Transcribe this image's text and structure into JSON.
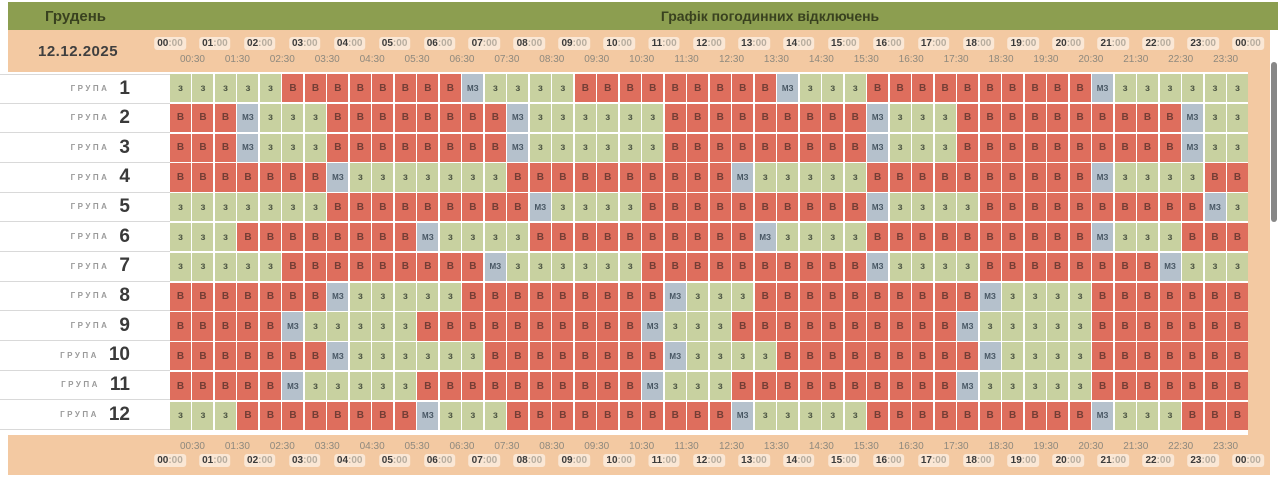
{
  "title_bar": {
    "month": "Грудень",
    "title": "Графік погодинних відключень"
  },
  "date": "12.12.2025",
  "time_axis": {
    "hours": [
      "00:00",
      "01:00",
      "02:00",
      "03:00",
      "04:00",
      "05:00",
      "06:00",
      "07:00",
      "08:00",
      "09:00",
      "10:00",
      "11:00",
      "12:00",
      "13:00",
      "14:00",
      "15:00",
      "16:00",
      "17:00",
      "18:00",
      "19:00",
      "20:00",
      "21:00",
      "22:00",
      "23:00",
      "00:00"
    ],
    "half_hours": [
      "00:30",
      "01:30",
      "02:30",
      "03:30",
      "04:30",
      "05:30",
      "06:30",
      "07:30",
      "08:30",
      "09:30",
      "10:30",
      "11:30",
      "12:30",
      "13:30",
      "14:30",
      "15:30",
      "16:30",
      "17:30",
      "18:30",
      "19:30",
      "20:30",
      "21:30",
      "22:30",
      "23:30"
    ]
  },
  "groups": [
    {
      "label": "ГРУПА",
      "number": "1"
    },
    {
      "label": "ГРУПА",
      "number": "2"
    },
    {
      "label": "ГРУПА",
      "number": "3"
    },
    {
      "label": "ГРУПА",
      "number": "4"
    },
    {
      "label": "ГРУПА",
      "number": "5"
    },
    {
      "label": "ГРУПА",
      "number": "6"
    },
    {
      "label": "ГРУПА",
      "number": "7"
    },
    {
      "label": "ГРУПА",
      "number": "8"
    },
    {
      "label": "ГРУПА",
      "number": "9"
    },
    {
      "label": "ГРУПА",
      "number": "10"
    },
    {
      "label": "ГРУПА",
      "number": "11"
    },
    {
      "label": "ГРУПА",
      "number": "12"
    }
  ],
  "schedule": {
    "cell_types": {
      "z": {
        "label": "з",
        "color": "#c8d1a0",
        "text_color": "#4f5845"
      },
      "v": {
        "label": "В",
        "color": "#de6e5d",
        "text_color": "#733d35"
      },
      "m": {
        "label": "МЗ",
        "color": "#b5c1cc",
        "text_color": "#475663"
      }
    },
    "rows": [
      "zzzzzvvvvvvvvmzzzzvvvvvvvvvmzzzvvvvvvvvvvmzzzzzz",
      "vvvmzzzvvvvvvvvmzzzzzzvvvvvvvvvmzzzvvvvvvvvvvmzz",
      "vvvmzzzvvvvvvvvmzzzzzzvvvvvvvvvmzzzvvvvvvvvvvmzz",
      "vvvvvvvmzzzzzzzvvvvvvvvvvmzzzzzvvvvvvvvvvmzzzzvv",
      "zzzzzzzvvvvvvvvvmzzzzvvvvvvvvvvmzzzzvvvvvvvvvvmz",
      "zzzvvvvvvvvmzzzzvvvvvvvvvvmzzzzvvvvvvvvvvmzzzvvv",
      "zzzzzvvvvvvvvvmzzzzzzvvvvvvvvvvmzzzzvvvvvvvvmzzz",
      "vvvvvvvmzzzzzvvvvvvvvvmzzzvvvvvvvvvvmzzzzvvvvvvv",
      "vvvvvmzzzzzvvvvvvvvvvmzzzvvvvvvvvvvmzzzzzvvvvvvv",
      "vvvvvvvmzzzzzzvvvvvvvvmzzzzvvvvvvvvvmzzzzvvvvvvv",
      "vvvvvmzzzzzvvvvvvvvvvmzzzvvvvvvvvvvmzzzzzvvvvvvv",
      "zzzvvvvvvvvmzzzvvvvvvvvvvmzzzzzvvvvvvvvvvmzzzvvv"
    ]
  },
  "colors": {
    "title_bar_bg": "#8c9e50",
    "band_bg": "#f3c9a2",
    "cell_on": "#c8d1a0",
    "cell_off": "#de6e5d",
    "cell_maybe": "#b5c1cc",
    "scrollbar": "#878787"
  }
}
